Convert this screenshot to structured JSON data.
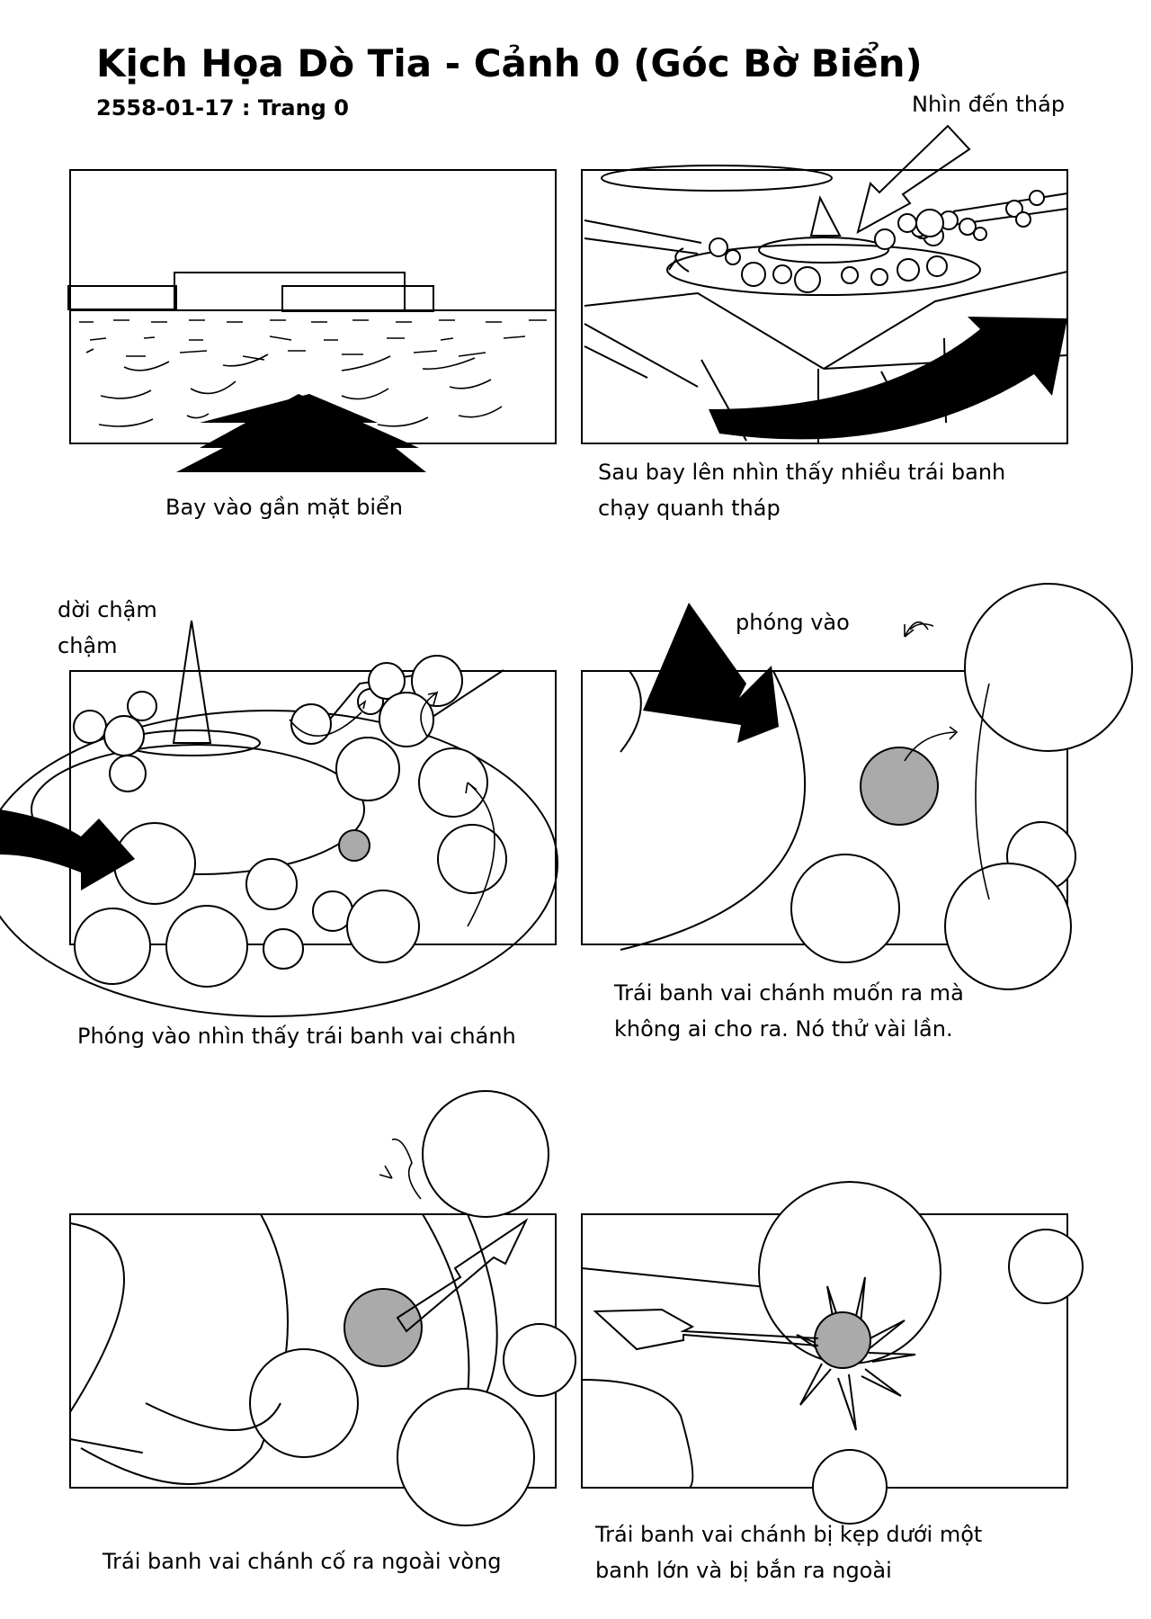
{
  "page": {
    "title": "Kịch Họa Dò Tia - Cảnh 0 (Góc Bờ Biển)",
    "subtitle": "2558-01-17 : Trang 0"
  },
  "panels": [
    {
      "id": 1,
      "caption": "Bay vào gần mặt biển"
    },
    {
      "id": 2,
      "caption_line1": "Sau bay lên nhìn thấy nhiều trái banh",
      "caption_line2": "chạy quanh tháp",
      "note": "Nhìn đến tháp"
    },
    {
      "id": 3,
      "caption": "Phóng vào nhìn thấy trái banh vai chánh",
      "note_line1": "dời chậm",
      "note_line2": "chậm"
    },
    {
      "id": 4,
      "caption_line1": "Trái banh vai chánh muốn ra mà",
      "caption_line2": "không ai cho ra. Nó thử vài lần.",
      "note": "phóng vào"
    },
    {
      "id": 5,
      "caption": "Trái banh vai chánh cố ra ngoài vòng"
    },
    {
      "id": 6,
      "caption_line1": "Trái banh vai chánh bị kẹp dưới một",
      "caption_line2": "banh lớn và bị bắn ra ngoài"
    }
  ],
  "colors": {
    "ink": "#000000",
    "paper": "#ffffff",
    "hero_ball": "#aaaaaa"
  }
}
